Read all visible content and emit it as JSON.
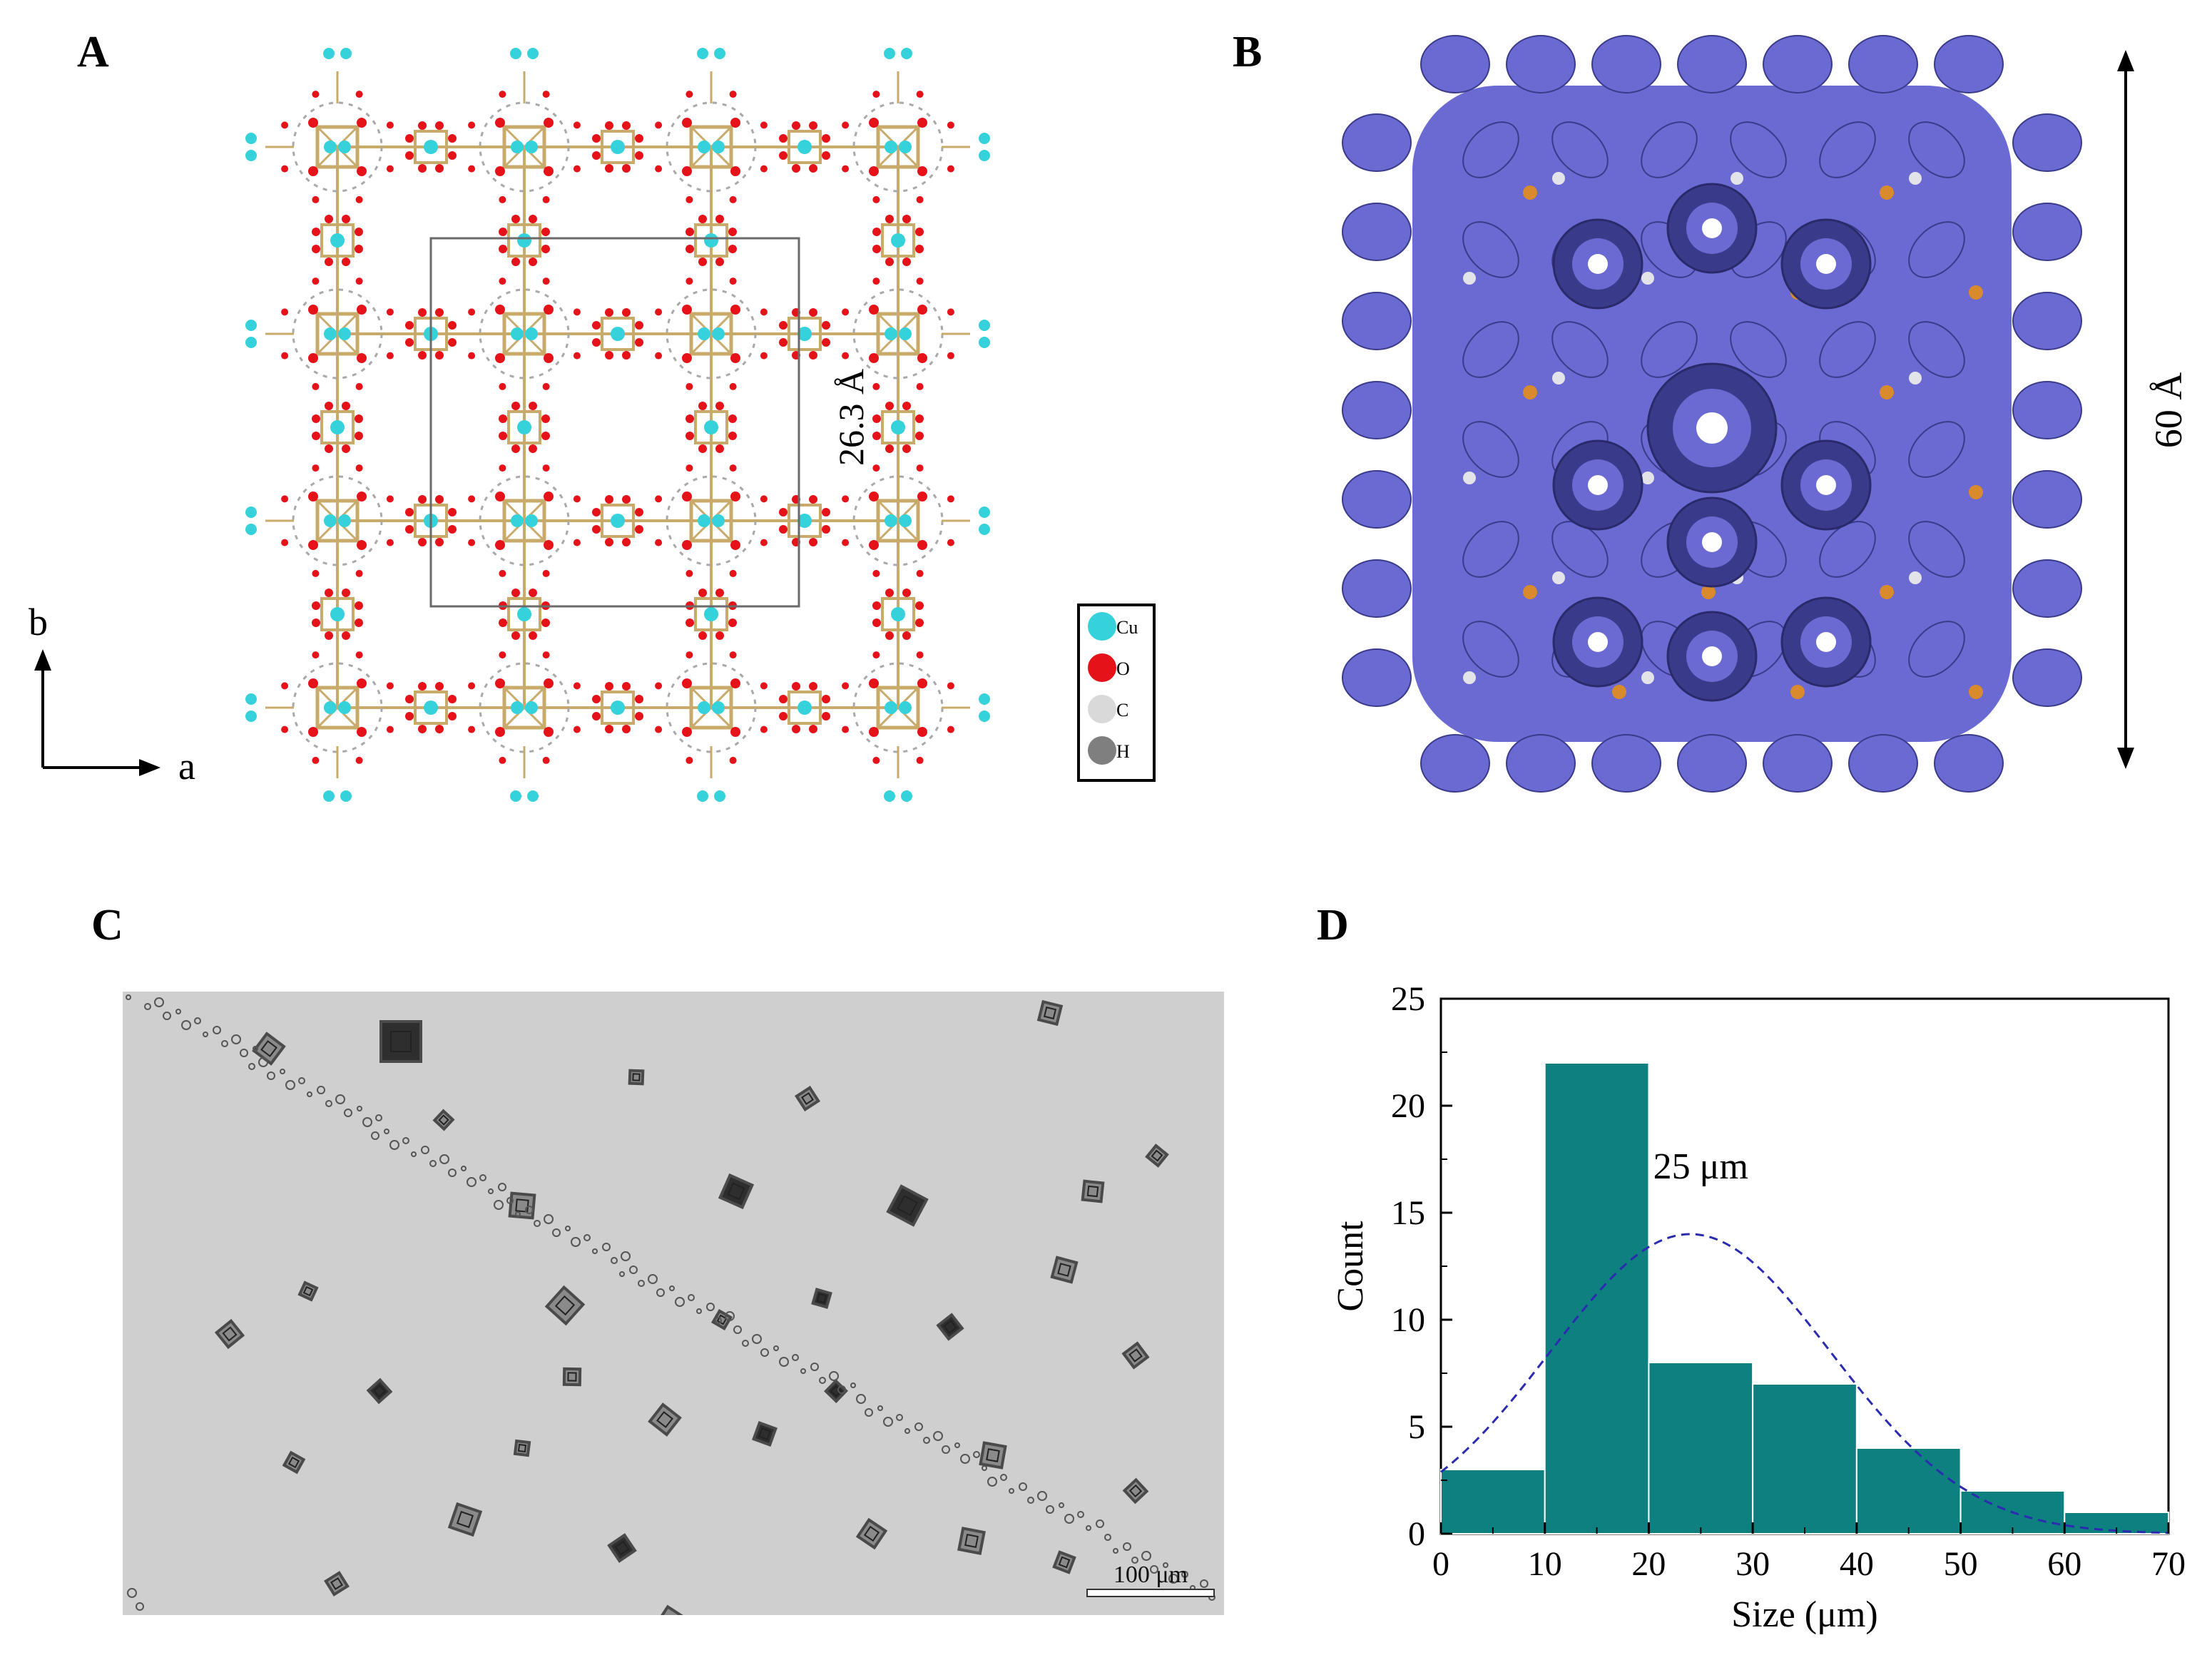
{
  "panels": {
    "a": "A",
    "b": "B",
    "c": "C",
    "d": "D"
  },
  "panel_a": {
    "dimension": "26.3 Å",
    "axis_b": "b",
    "axis_a": "a",
    "legend": [
      {
        "label": "Cu",
        "color": "#35d2dc"
      },
      {
        "label": "O",
        "color": "#e5121a"
      },
      {
        "label": "C",
        "color": "#d9d9d9"
      },
      {
        "label": "H",
        "color": "#7f7f7f"
      }
    ],
    "colors": {
      "bond": "#c8ab6a",
      "cu": "#35d2dc",
      "o": "#e5121a",
      "c": "#a9a9a9",
      "cell": "#6a6a6a"
    }
  },
  "panel_b": {
    "dimension": "60 Å",
    "colors": {
      "surface": "#6a6ad2",
      "dark": "#3a3a8a",
      "accent": "#d98a2c",
      "light": "#e3e3ea"
    }
  },
  "panel_c": {
    "scale_bar": "100 μm",
    "colors": {
      "background": "#cfcfcf",
      "crystal": "#4a4a4a"
    }
  },
  "chart_data": {
    "type": "bar",
    "title": "",
    "xlabel": "Size (μm)",
    "ylabel": "Count",
    "bins": [
      [
        0,
        10
      ],
      [
        10,
        20
      ],
      [
        20,
        30
      ],
      [
        30,
        40
      ],
      [
        40,
        50
      ],
      [
        50,
        60
      ],
      [
        60,
        70
      ]
    ],
    "values": [
      3,
      22,
      8,
      7,
      4,
      2,
      1
    ],
    "xlim": [
      0,
      70
    ],
    "ylim": [
      0,
      25
    ],
    "xticks": [
      0,
      10,
      20,
      30,
      40,
      50,
      60,
      70
    ],
    "yticks": [
      0,
      5,
      10,
      15,
      20,
      25
    ],
    "fit": {
      "type": "gaussian",
      "mean": 24,
      "peak": 14,
      "sigma": 13.5,
      "style": "dashed",
      "color": "#2b2bb0"
    },
    "annotation": "25 μm",
    "grid": false,
    "bar_color": "#0d807f"
  }
}
